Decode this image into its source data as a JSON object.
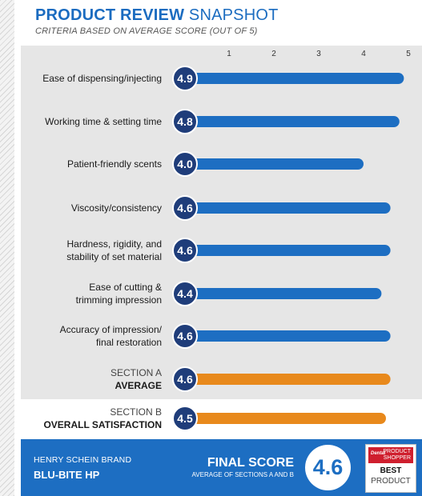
{
  "header": {
    "title_bold": "PRODUCT REVIEW",
    "title_light": "SNAPSHOT",
    "subtitle": "CRITERIA BASED ON AVERAGE SCORE (OUT OF 5)"
  },
  "colors": {
    "blue": "#1d6ec2",
    "orange": "#e8891c",
    "panel_gray": "#e6e6e6"
  },
  "chart_data": {
    "type": "bar",
    "orientation": "horizontal",
    "xlim": [
      0,
      5
    ],
    "ticks": [
      1,
      2,
      3,
      4,
      5
    ],
    "rows": [
      {
        "lines": [
          "Ease of dispensing/injecting"
        ],
        "value": 4.9,
        "label": "4.9",
        "color": "#1d6ec2"
      },
      {
        "lines": [
          "Working time & setting time"
        ],
        "value": 4.8,
        "label": "4.8",
        "color": "#1d6ec2"
      },
      {
        "lines": [
          "Patient-friendly scents"
        ],
        "value": 4.0,
        "label": "4.0",
        "color": "#1d6ec2"
      },
      {
        "lines": [
          "Viscosity/consistency"
        ],
        "value": 4.6,
        "label": "4.6",
        "color": "#1d6ec2"
      },
      {
        "lines": [
          "Hardness, rigidity, and",
          "stability of set material"
        ],
        "value": 4.6,
        "label": "4.6",
        "color": "#1d6ec2"
      },
      {
        "lines": [
          "Ease of cutting &",
          "trimming impression"
        ],
        "value": 4.4,
        "label": "4.4",
        "color": "#1d6ec2"
      },
      {
        "lines": [
          "Accuracy of impression/",
          "final restoration"
        ],
        "value": 4.6,
        "label": "4.6",
        "color": "#1d6ec2"
      },
      {
        "lines": [
          "SECTION A",
          "AVERAGE"
        ],
        "value": 4.6,
        "label": "4.6",
        "color": "#e8891c",
        "section": true
      },
      {
        "lines": [
          "SECTION B",
          "OVERALL SATISFACTION"
        ],
        "value": 4.5,
        "label": "4.5",
        "color": "#e8891c",
        "section": true
      }
    ]
  },
  "footer": {
    "brand_label": "HENRY SCHEIN BRAND",
    "product_name": "BLU-BITE HP",
    "final_title": "FINAL SCORE",
    "final_subtitle": "AVERAGE OF SECTIONS A AND B",
    "final_score": "4.6",
    "badge": {
      "dental": "Dental",
      "product_shopper": "PRODUCT SHOPPER",
      "best": "BEST",
      "product": "PRODUCT"
    }
  }
}
